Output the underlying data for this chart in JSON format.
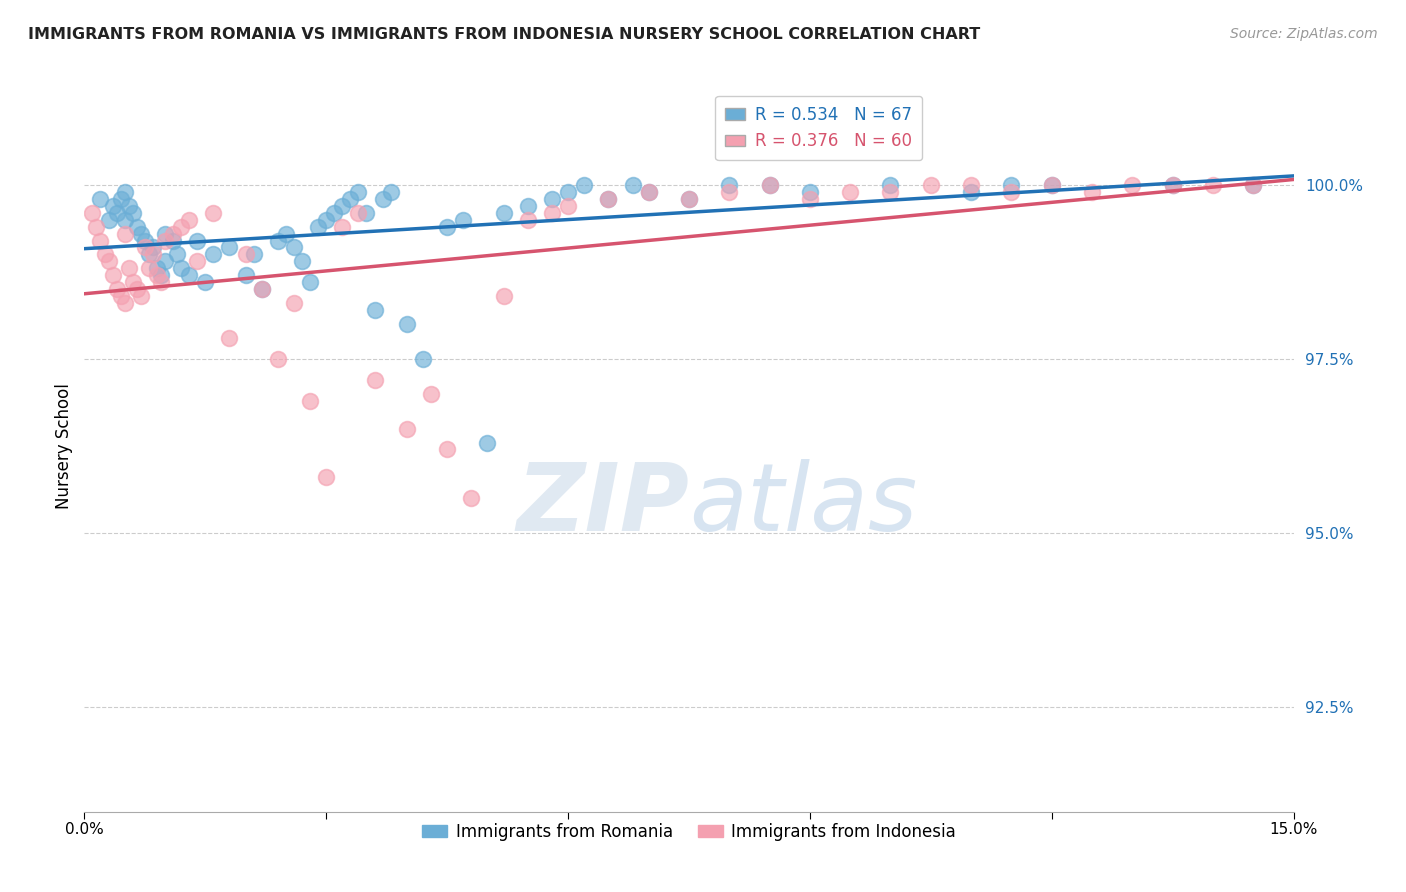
{
  "title": "IMMIGRANTS FROM ROMANIA VS IMMIGRANTS FROM INDONESIA NURSERY SCHOOL CORRELATION CHART",
  "source": "Source: ZipAtlas.com",
  "ylabel": "Nursery School",
  "yticks": [
    92.5,
    95.0,
    97.5,
    100.0
  ],
  "ytick_labels": [
    "92.5%",
    "95.0%",
    "97.5%",
    "100.0%"
  ],
  "xmin": 0.0,
  "xmax": 15.0,
  "ymin": 91.0,
  "ymax": 101.5,
  "romania_R": 0.534,
  "romania_N": 67,
  "indonesia_R": 0.376,
  "indonesia_N": 60,
  "romania_color": "#6baed6",
  "indonesia_color": "#f4a0b0",
  "romania_line_color": "#2171b5",
  "indonesia_line_color": "#d6546e",
  "legend_romania": "Immigrants from Romania",
  "legend_indonesia": "Immigrants from Indonesia",
  "watermark_zip": "ZIP",
  "watermark_atlas": "atlas",
  "romania_x": [
    0.2,
    0.3,
    0.35,
    0.4,
    0.45,
    0.5,
    0.5,
    0.55,
    0.6,
    0.65,
    0.7,
    0.75,
    0.8,
    0.85,
    0.9,
    0.95,
    1.0,
    1.0,
    1.1,
    1.15,
    1.2,
    1.3,
    1.4,
    1.5,
    1.6,
    1.8,
    2.0,
    2.1,
    2.2,
    2.4,
    2.5,
    2.6,
    2.7,
    2.8,
    2.9,
    3.0,
    3.1,
    3.2,
    3.3,
    3.4,
    3.5,
    3.6,
    3.7,
    3.8,
    4.0,
    4.2,
    4.5,
    4.7,
    5.0,
    5.2,
    5.5,
    5.8,
    6.0,
    6.2,
    6.5,
    6.8,
    7.0,
    7.5,
    8.0,
    8.5,
    9.0,
    10.0,
    11.0,
    11.5,
    12.0,
    13.5,
    14.5
  ],
  "romania_y": [
    99.8,
    99.5,
    99.7,
    99.6,
    99.8,
    99.5,
    99.9,
    99.7,
    99.6,
    99.4,
    99.3,
    99.2,
    99.0,
    99.1,
    98.8,
    98.7,
    99.3,
    98.9,
    99.2,
    99.0,
    98.8,
    98.7,
    99.2,
    98.6,
    99.0,
    99.1,
    98.7,
    99.0,
    98.5,
    99.2,
    99.3,
    99.1,
    98.9,
    98.6,
    99.4,
    99.5,
    99.6,
    99.7,
    99.8,
    99.9,
    99.6,
    98.2,
    99.8,
    99.9,
    98.0,
    97.5,
    99.4,
    99.5,
    96.3,
    99.6,
    99.7,
    99.8,
    99.9,
    100.0,
    99.8,
    100.0,
    99.9,
    99.8,
    100.0,
    100.0,
    99.9,
    100.0,
    99.9,
    100.0,
    100.0,
    100.0,
    100.0
  ],
  "indonesia_x": [
    0.1,
    0.15,
    0.2,
    0.25,
    0.3,
    0.35,
    0.4,
    0.45,
    0.5,
    0.5,
    0.55,
    0.6,
    0.65,
    0.7,
    0.75,
    0.8,
    0.85,
    0.9,
    0.95,
    1.0,
    1.1,
    1.2,
    1.3,
    1.4,
    1.6,
    1.8,
    2.0,
    2.2,
    2.4,
    2.6,
    2.8,
    3.0,
    3.2,
    3.4,
    3.6,
    4.0,
    4.3,
    4.5,
    4.8,
    5.2,
    5.5,
    5.8,
    6.0,
    6.5,
    7.0,
    7.5,
    8.0,
    8.5,
    9.0,
    9.5,
    10.0,
    10.5,
    11.0,
    11.5,
    12.0,
    12.5,
    13.0,
    13.5,
    14.0,
    14.5
  ],
  "indonesia_y": [
    99.6,
    99.4,
    99.2,
    99.0,
    98.9,
    98.7,
    98.5,
    98.4,
    99.3,
    98.3,
    98.8,
    98.6,
    98.5,
    98.4,
    99.1,
    98.8,
    99.0,
    98.7,
    98.6,
    99.2,
    99.3,
    99.4,
    99.5,
    98.9,
    99.6,
    97.8,
    99.0,
    98.5,
    97.5,
    98.3,
    96.9,
    95.8,
    99.4,
    99.6,
    97.2,
    96.5,
    97.0,
    96.2,
    95.5,
    98.4,
    99.5,
    99.6,
    99.7,
    99.8,
    99.9,
    99.8,
    99.9,
    100.0,
    99.8,
    99.9,
    99.9,
    100.0,
    100.0,
    99.9,
    100.0,
    99.9,
    100.0,
    100.0,
    100.0,
    100.0
  ]
}
